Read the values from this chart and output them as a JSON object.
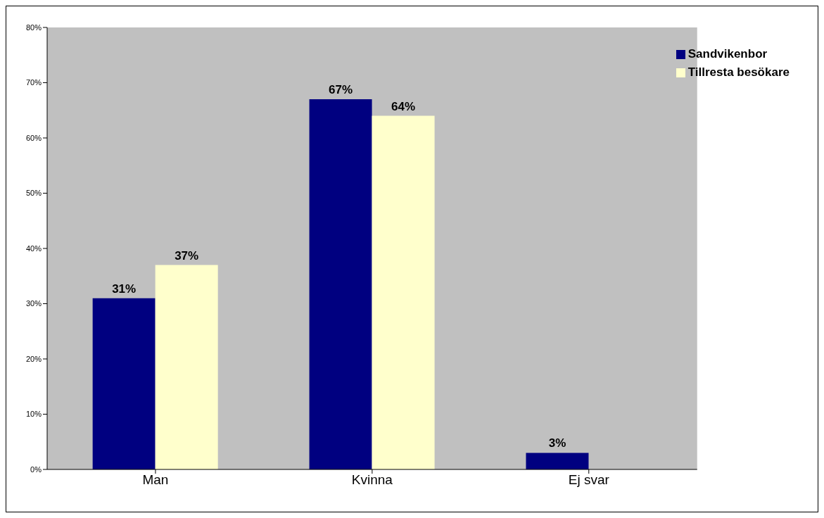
{
  "chart_data": {
    "type": "bar",
    "categories": [
      "Man",
      "Kvinna",
      "Ej svar"
    ],
    "series": [
      {
        "name": "Sandvikenbor",
        "color": "#000080",
        "values": [
          31,
          67,
          3
        ],
        "value_labels": [
          "31%",
          "67%",
          "3%"
        ]
      },
      {
        "name": "Tillresta besökare",
        "color": "#ffffcc",
        "values": [
          37,
          64,
          null
        ],
        "value_labels": [
          "37%",
          "64%",
          null
        ]
      }
    ],
    "ylim": [
      0,
      80
    ],
    "yticks": [
      {
        "value": 0,
        "label": "0%"
      },
      {
        "value": 10,
        "label": "10%"
      },
      {
        "value": 20,
        "label": "20%"
      },
      {
        "value": 30,
        "label": "30%"
      },
      {
        "value": 40,
        "label": "40%"
      },
      {
        "value": 50,
        "label": "50%"
      },
      {
        "value": 60,
        "label": "60%"
      },
      {
        "value": 70,
        "label": "70%"
      },
      {
        "value": 80,
        "label": "80%"
      }
    ],
    "legend": "top right",
    "grid": false
  }
}
